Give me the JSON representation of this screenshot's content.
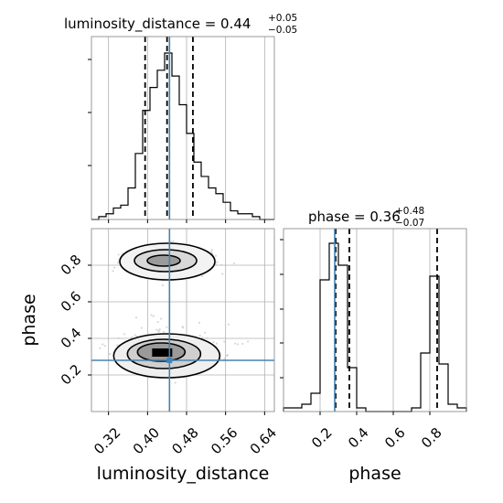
{
  "chart_data": {
    "type": "corner",
    "parameters": [
      "luminosity_distance",
      "phase"
    ],
    "truths": {
      "luminosity_distance": 0.445,
      "phase": 0.28
    },
    "titles": {
      "luminosity_distance": {
        "main": "luminosity_distance = 0.44",
        "upper": "+0.05",
        "lower": "−0.05"
      },
      "phase": {
        "main": "phase = 0.36",
        "upper": "+0.48",
        "lower": "−0.07"
      }
    },
    "axis_labels": {
      "x1": "luminosity_distance",
      "x2": "phase",
      "y2": "phase"
    },
    "ld_ticks": [
      "0.32",
      "0.40",
      "0.48",
      "0.56",
      "0.64"
    ],
    "phase_x_ticks": [
      "0.2",
      "0.4",
      "0.6",
      "0.8"
    ],
    "phase_y_ticks": [
      "0.2",
      "0.4",
      "0.6",
      "0.8"
    ],
    "xlim_ld": [
      0.285,
      0.66
    ],
    "ylim_phase": [
      0.0,
      1.0
    ],
    "grid": true,
    "hist_ld": {
      "bin_edges": [
        0.285,
        0.3,
        0.315,
        0.33,
        0.345,
        0.36,
        0.375,
        0.39,
        0.405,
        0.42,
        0.435,
        0.45,
        0.465,
        0.48,
        0.495,
        0.51,
        0.525,
        0.54,
        0.555,
        0.57,
        0.585,
        0.6,
        0.615,
        0.63,
        0.645,
        0.66
      ],
      "counts": [
        0,
        1,
        2,
        4,
        5,
        11,
        23,
        38,
        46,
        52,
        58,
        50,
        40,
        30,
        20,
        15,
        11,
        9,
        6,
        3,
        2,
        2,
        1,
        0,
        0
      ],
      "quantiles": [
        0.395,
        0.44,
        0.493
      ]
    },
    "hist_phase": {
      "bin_edges": [
        0.0,
        0.05,
        0.1,
        0.15,
        0.2,
        0.25,
        0.3,
        0.35,
        0.4,
        0.45,
        0.5,
        0.55,
        0.6,
        0.65,
        0.7,
        0.75,
        0.8,
        0.85,
        0.9,
        0.95,
        1.0
      ],
      "counts": [
        1,
        1,
        2,
        5,
        36,
        46,
        40,
        12,
        1,
        0,
        0,
        0,
        0,
        0,
        1,
        16,
        37,
        13,
        2,
        1
      ],
      "quantiles": [
        0.285,
        0.36,
        0.84
      ]
    },
    "density_2d": {
      "modes": [
        {
          "ld": 0.43,
          "phase": 0.33,
          "weight": "high"
        },
        {
          "ld": 0.45,
          "phase": 0.83,
          "weight": "medium"
        }
      ]
    }
  },
  "colors": {
    "truth": "#4682b4",
    "hist": "#000000",
    "grid": "#b0b0b0"
  }
}
